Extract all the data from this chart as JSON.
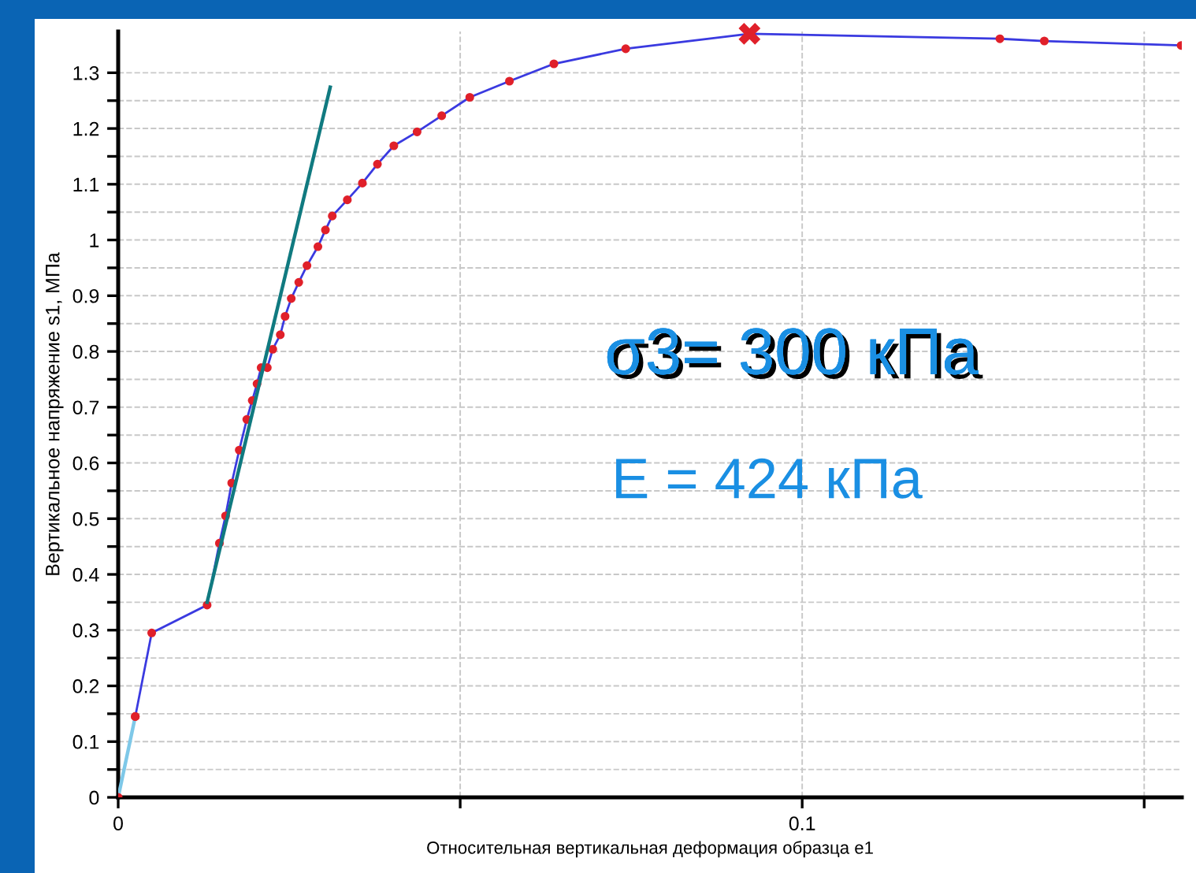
{
  "chart_data": {
    "type": "line",
    "xlabel": "Относительная вертикальная деформация образца e1",
    "ylabel": "Вертикальное напряжение s1, МПа",
    "annotations": [
      "σ3= 300 кПа",
      "E = 424 кПа"
    ],
    "xlim": [
      0,
      0.1555
    ],
    "ylim": [
      0,
      1.374
    ],
    "xticks": [
      0,
      {
        "value": 0.05,
        "label": null
      },
      0.1,
      {
        "value": 0.15,
        "label": null
      }
    ],
    "yticks": [
      0,
      {
        "value": 0.05,
        "label": null
      },
      0.1,
      {
        "value": 0.15,
        "label": null
      },
      0.2,
      {
        "value": 0.25,
        "label": null
      },
      0.3,
      {
        "value": 0.35,
        "label": null
      },
      0.4,
      {
        "value": 0.45,
        "label": null
      },
      0.5,
      {
        "value": 0.55,
        "label": null
      },
      0.6,
      {
        "value": 0.65,
        "label": null
      },
      0.7,
      {
        "value": 0.75,
        "label": null
      },
      0.8,
      {
        "value": 0.85,
        "label": null
      },
      0.9,
      {
        "value": 0.95,
        "label": null
      },
      1,
      {
        "value": 1.05,
        "label": null
      },
      1.1,
      {
        "value": 1.15,
        "label": null
      },
      1.2,
      {
        "value": 1.25,
        "label": null
      },
      1.3
    ],
    "grid": true,
    "legend": false,
    "series": [
      {
        "color": "#7ec8e8",
        "marker": "circle",
        "x": [
          0,
          0.0025
        ],
        "values": [
          0,
          0.145
        ]
      },
      {
        "color": "#3a3ae0",
        "marker": "circle",
        "x": [
          0.0025,
          0.0049,
          0.013,
          0.0148,
          0.0157,
          0.0166,
          0.0177,
          0.0188,
          0.0196,
          0.0203,
          0.0209,
          0.0218,
          0.0226,
          0.0237,
          0.0244,
          0.0253,
          0.0264,
          0.0276,
          0.0292,
          0.0303,
          0.0313,
          0.0335,
          0.0357,
          0.0379,
          0.0403,
          0.0437,
          0.0473,
          0.0514,
          0.0572,
          0.0637,
          0.0742,
          0.0923,
          0.1289,
          0.1354,
          0.1554
        ],
        "values": [
          0.145,
          0.295,
          0.345,
          0.456,
          0.505,
          0.564,
          0.623,
          0.678,
          0.712,
          0.742,
          0.771,
          0.771,
          0.804,
          0.83,
          0.863,
          0.895,
          0.924,
          0.954,
          0.988,
          1.018,
          1.043,
          1.072,
          1.102,
          1.136,
          1.169,
          1.194,
          1.223,
          1.256,
          1.285,
          1.316,
          1.343,
          1.37,
          1.361,
          1.357,
          1.349
        ]
      },
      {
        "color": "#107a80",
        "marker": "none",
        "x": [
          0.013,
          0.031
        ],
        "values": [
          0.35,
          1.274
        ]
      },
      {
        "type": "scatter",
        "color": "#e0202a",
        "marker": "cross",
        "x": [
          0.0923
        ],
        "values": [
          1.37
        ]
      }
    ]
  }
}
